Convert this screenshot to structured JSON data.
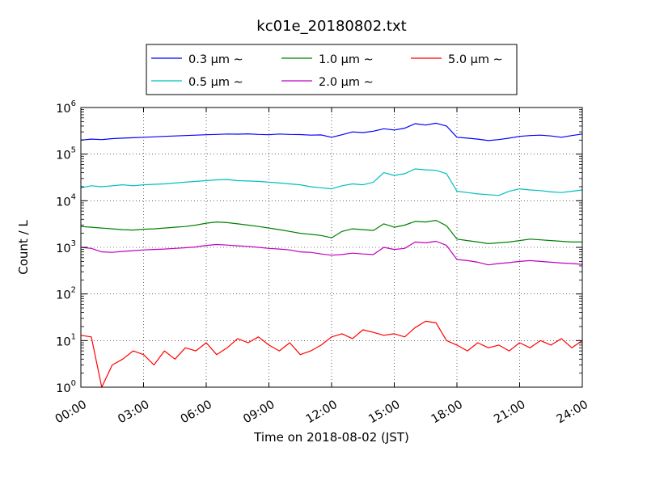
{
  "chart_data": {
    "type": "line",
    "title": "kc01e_20180802.txt",
    "xlabel": "Time on 2018-08-02 (JST)",
    "ylabel": "Count / L",
    "yscale": "log",
    "ylim": [
      1,
      1000000
    ],
    "xlim_hours": [
      0,
      24
    ],
    "x_ticks": [
      "00:00",
      "03:00",
      "06:00",
      "09:00",
      "12:00",
      "15:00",
      "18:00",
      "21:00",
      "24:00"
    ],
    "y_ticks": [
      {
        "base": "10",
        "exp": "0"
      },
      {
        "base": "10",
        "exp": "1"
      },
      {
        "base": "10",
        "exp": "2"
      },
      {
        "base": "10",
        "exp": "3"
      },
      {
        "base": "10",
        "exp": "4"
      },
      {
        "base": "10",
        "exp": "5"
      },
      {
        "base": "10",
        "exp": "6"
      }
    ],
    "grid": true,
    "legend_position": "top, outside plot",
    "x_hours": [
      0,
      0.5,
      1,
      1.5,
      2,
      2.5,
      3,
      3.5,
      4,
      4.5,
      5,
      5.5,
      6,
      6.5,
      7,
      7.5,
      8,
      8.5,
      9,
      9.5,
      10,
      10.5,
      11,
      11.5,
      12,
      12.5,
      13,
      13.5,
      14,
      14.5,
      15,
      15.5,
      16,
      16.5,
      17,
      17.5,
      18,
      18.5,
      19,
      19.5,
      20,
      20.5,
      21,
      21.5,
      22,
      22.5,
      23,
      23.5,
      24
    ],
    "series": [
      {
        "name": "0.3 μm ∼",
        "color": "#0000ff",
        "values": [
          200000,
          210000,
          205000,
          215000,
          220000,
          225000,
          230000,
          235000,
          240000,
          245000,
          250000,
          255000,
          260000,
          265000,
          270000,
          268000,
          272000,
          265000,
          260000,
          270000,
          265000,
          262000,
          255000,
          258000,
          230000,
          260000,
          300000,
          290000,
          310000,
          350000,
          330000,
          360000,
          450000,
          420000,
          460000,
          400000,
          230000,
          220000,
          210000,
          195000,
          205000,
          220000,
          240000,
          250000,
          255000,
          245000,
          230000,
          250000,
          270000
        ]
      },
      {
        "name": "0.5 μm ∼",
        "color": "#00bfbf",
        "values": [
          19000,
          21000,
          20000,
          21000,
          22000,
          21000,
          22000,
          22500,
          23000,
          24000,
          25000,
          26000,
          27000,
          28000,
          28500,
          27000,
          26500,
          26000,
          25000,
          24000,
          23000,
          22000,
          20000,
          19000,
          18000,
          21000,
          23000,
          22000,
          25000,
          40000,
          35000,
          38000,
          48000,
          46000,
          45000,
          38000,
          16000,
          15000,
          14000,
          13500,
          13000,
          16000,
          18000,
          17000,
          16500,
          15500,
          15000,
          16000,
          17000
        ]
      },
      {
        "name": "1.0 μm ∼",
        "color": "#008000",
        "values": [
          2800,
          2700,
          2600,
          2500,
          2400,
          2350,
          2450,
          2500,
          2600,
          2700,
          2800,
          3000,
          3300,
          3500,
          3400,
          3200,
          3000,
          2800,
          2600,
          2400,
          2200,
          2000,
          1900,
          1800,
          1600,
          2200,
          2500,
          2400,
          2300,
          3200,
          2700,
          3000,
          3600,
          3500,
          3800,
          2900,
          1500,
          1400,
          1300,
          1200,
          1250,
          1300,
          1400,
          1500,
          1450,
          1400,
          1350,
          1300,
          1300
        ]
      },
      {
        "name": "2.0 μm ∼",
        "color": "#bf00bf",
        "values": [
          1000,
          950,
          800,
          780,
          820,
          850,
          880,
          900,
          920,
          950,
          980,
          1020,
          1100,
          1150,
          1120,
          1080,
          1050,
          1000,
          950,
          920,
          880,
          800,
          780,
          720,
          680,
          700,
          750,
          720,
          700,
          1000,
          900,
          950,
          1300,
          1250,
          1350,
          1100,
          550,
          520,
          480,
          420,
          450,
          470,
          500,
          520,
          500,
          480,
          460,
          450,
          430
        ]
      },
      {
        "name": "5.0 μm ∼",
        "color": "#ff0000",
        "values": [
          13,
          12,
          1,
          3,
          4,
          6,
          5,
          3,
          6,
          4,
          7,
          6,
          9,
          5,
          7,
          11,
          9,
          12,
          8,
          6,
          9,
          5,
          6,
          8,
          12,
          14,
          11,
          17,
          15,
          13,
          14,
          12,
          19,
          26,
          24,
          10,
          8,
          6,
          9,
          7,
          8,
          6,
          9,
          7,
          10,
          8,
          11,
          7,
          10
        ]
      }
    ]
  }
}
